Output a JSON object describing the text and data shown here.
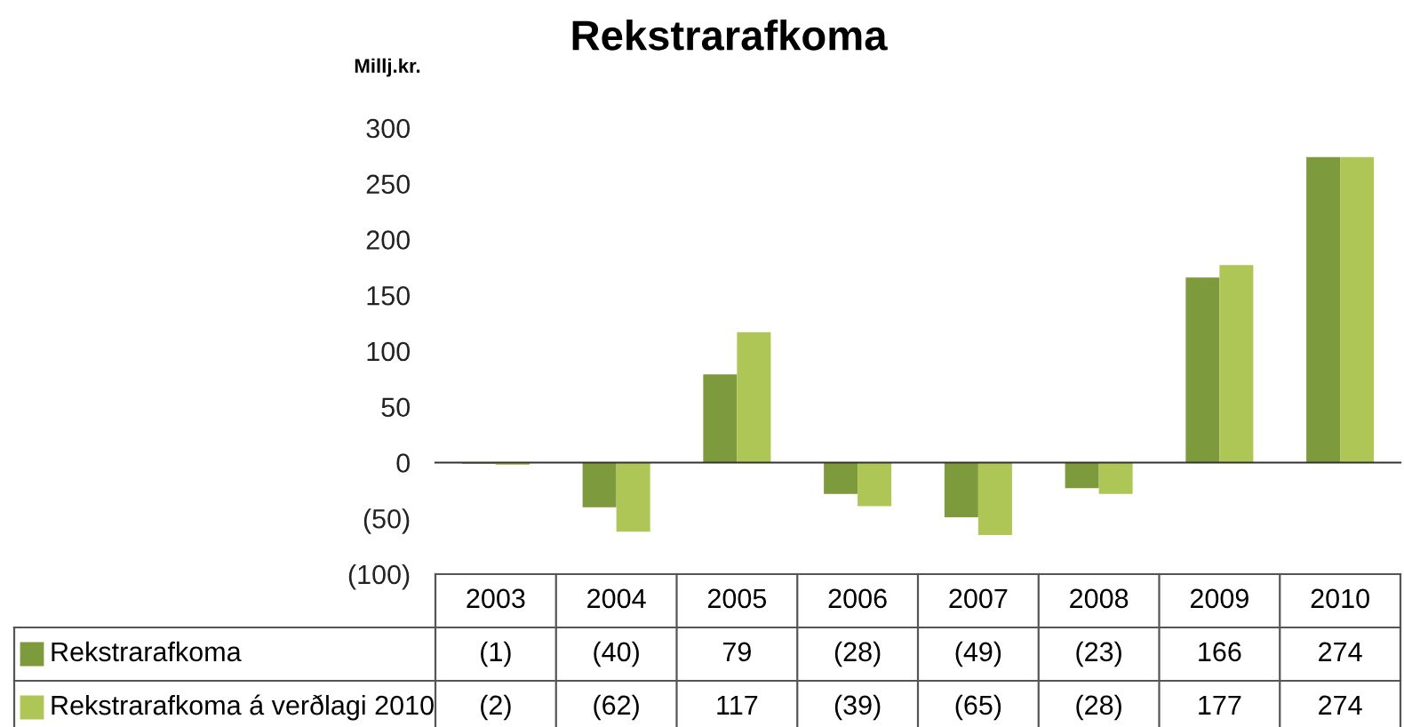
{
  "chart_data": {
    "type": "bar",
    "title": "Rekstrarafkoma",
    "ylabel": "Millj.kr.",
    "categories": [
      "2003",
      "2004",
      "2005",
      "2006",
      "2007",
      "2008",
      "2009",
      "2010"
    ],
    "series": [
      {
        "name": "Rekstrarafkoma",
        "color": "#7d9a3c",
        "values": [
          -1,
          -40,
          79,
          -28,
          -49,
          -23,
          166,
          274
        ],
        "value_labels": [
          "(1)",
          "(40)",
          "79",
          "(28)",
          "(49)",
          "(23)",
          "166",
          "274"
        ]
      },
      {
        "name": "Rekstrarafkoma á verðlagi 2010",
        "color": "#adc655",
        "values": [
          -2,
          -62,
          117,
          -39,
          -65,
          -28,
          177,
          274
        ],
        "value_labels": [
          "(2)",
          "(62)",
          "117",
          "(39)",
          "(65)",
          "(28)",
          "177",
          "274"
        ]
      }
    ],
    "ylim": [
      -100,
      300
    ],
    "yticks": [
      {
        "value": -100,
        "label": "(100)"
      },
      {
        "value": -50,
        "label": "(50)"
      },
      0,
      50,
      100,
      150,
      200,
      250,
      300
    ],
    "legend": "bottom left"
  }
}
